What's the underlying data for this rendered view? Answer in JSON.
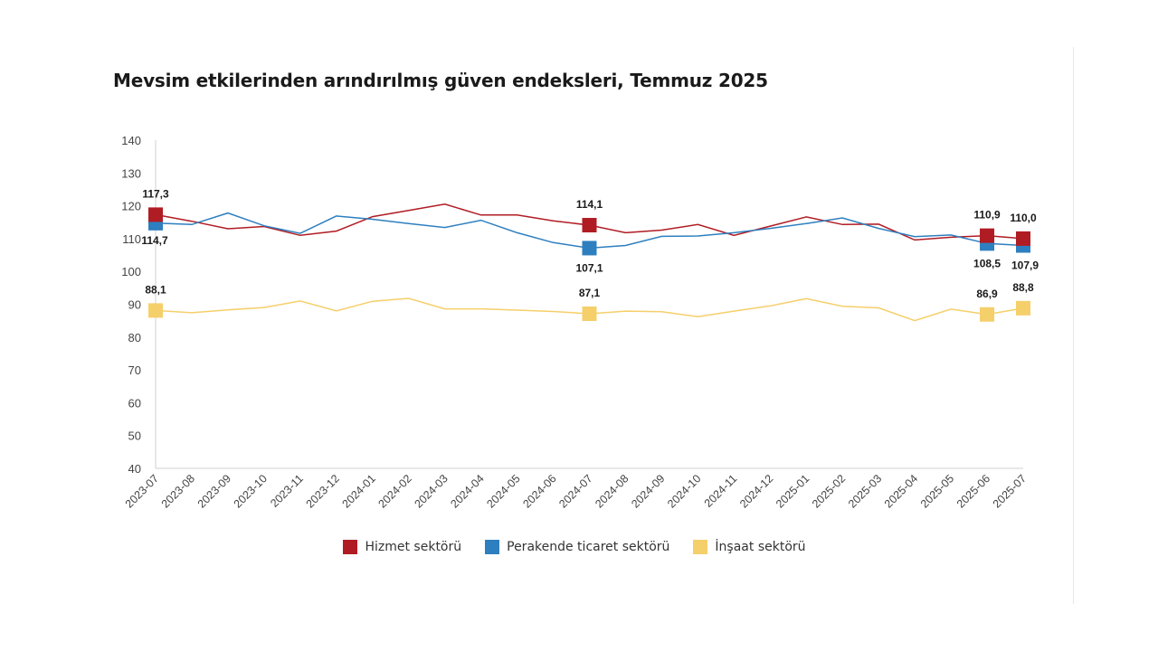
{
  "title": "Mevsim etkilerinden arındırılmış güven endeksleri, Temmuz 2025",
  "chart_data": {
    "type": "line",
    "title": "Mevsim etkilerinden arındırılmış güven endeksleri, Temmuz 2025",
    "xlabel": "",
    "ylabel": "",
    "ylim": [
      40,
      140
    ],
    "yticks": [
      40,
      50,
      60,
      70,
      80,
      90,
      100,
      110,
      120,
      130,
      140
    ],
    "grid": false,
    "legend_position": "bottom",
    "categories": [
      "2023-07",
      "2023-08",
      "2023-09",
      "2023-10",
      "2023-11",
      "2023-12",
      "2024-01",
      "2024-02",
      "2024-03",
      "2024-04",
      "2024-05",
      "2024-06",
      "2024-07",
      "2024-08",
      "2024-09",
      "2024-10",
      "2024-11",
      "2024-12",
      "2025-01",
      "2025-02",
      "2025-03",
      "2025-04",
      "2025-05",
      "2025-06",
      "2025-07"
    ],
    "series": [
      {
        "name": "Hizmet sektörü",
        "color": "#b01c23",
        "values": [
          117.3,
          115.3,
          113.0,
          113.7,
          111.0,
          112.3,
          116.7,
          118.6,
          120.5,
          117.2,
          117.2,
          115.4,
          114.1,
          111.8,
          112.6,
          114.3,
          111.0,
          113.8,
          116.6,
          114.3,
          114.4,
          109.6,
          110.4,
          110.9,
          110.0
        ],
        "labels": [
          {
            "index": 0,
            "text": "117,3"
          },
          {
            "index": 12,
            "text": "114,1"
          },
          {
            "index": 23,
            "text": "110,9"
          },
          {
            "index": 24,
            "text": "110,0"
          }
        ]
      },
      {
        "name": "Perakende ticaret sektörü",
        "color": "#2e7fbf",
        "values": [
          114.7,
          114.3,
          117.8,
          113.9,
          111.6,
          116.9,
          115.9,
          114.6,
          113.4,
          115.6,
          111.8,
          108.8,
          107.1,
          107.9,
          110.7,
          110.8,
          111.8,
          113.1,
          114.6,
          116.3,
          113.1,
          110.6,
          111.1,
          108.5,
          107.9
        ],
        "labels": [
          {
            "index": 0,
            "text": "114,7"
          },
          {
            "index": 12,
            "text": "107,1"
          },
          {
            "index": 23,
            "text": "108,5"
          },
          {
            "index": 24,
            "text": "107,9"
          }
        ]
      },
      {
        "name": "İnşaat sektörü",
        "color": "#f5cf6a",
        "values": [
          88.1,
          87.4,
          88.3,
          89.0,
          91.0,
          88.0,
          90.9,
          91.8,
          88.6,
          88.6,
          88.2,
          87.8,
          87.1,
          87.9,
          87.7,
          86.2,
          87.9,
          89.5,
          91.7,
          89.4,
          88.9,
          85.0,
          88.5,
          86.9,
          88.8
        ],
        "labels": [
          {
            "index": 0,
            "text": "88,1"
          },
          {
            "index": 12,
            "text": "87,1"
          },
          {
            "index": 23,
            "text": "86,9"
          },
          {
            "index": 24,
            "text": "88,8"
          }
        ]
      }
    ]
  }
}
